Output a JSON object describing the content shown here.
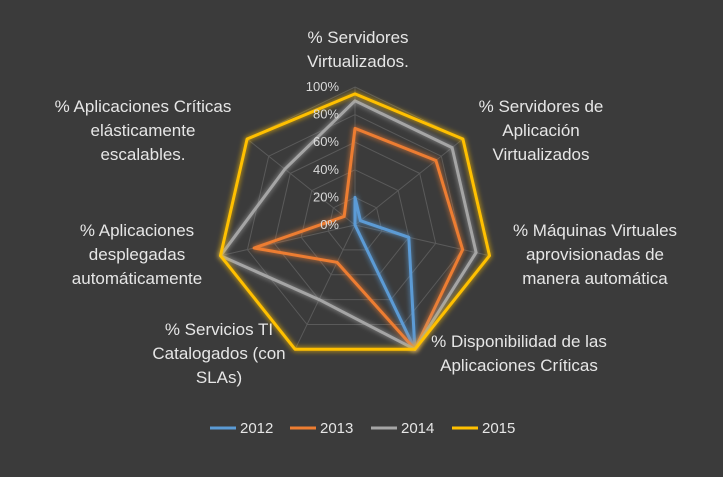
{
  "chart_data": {
    "type": "radar",
    "categories": [
      "% Servidores Virtualizados.",
      "% Servidores de Aplicación Virtualizados",
      "% Máquinas Virtuales aprovisionadas de manera automática",
      "% Disponibilidad de las Aplicaciones Críticas",
      "% Servicios TI Catalogados (con SLAs)",
      "% Aplicaciones desplegadas automáticamente",
      "% Aplicaciones Críticas elásticamente escalables."
    ],
    "category_lines": [
      [
        "% Servidores",
        "Virtualizados."
      ],
      [
        "% Servidores de",
        "Aplicación",
        "Virtualizados"
      ],
      [
        "% Máquinas Virtuales",
        "aprovisionadas de",
        "manera automática"
      ],
      [
        "% Disponibilidad de las",
        "Aplicaciones Críticas"
      ],
      [
        "% Servicios TI",
        "Catalogados (con",
        "SLAs)"
      ],
      [
        "% Aplicaciones",
        "desplegadas",
        "automáticamente"
      ],
      [
        "% Aplicaciones Críticas",
        "elásticamente",
        "escalables."
      ]
    ],
    "series": [
      {
        "name": "2012",
        "color": "#5b9bd5",
        "values": [
          0.2,
          0.05,
          0.4,
          1.0,
          0.0,
          0.0,
          0.0
        ]
      },
      {
        "name": "2013",
        "color": "#ed7d31",
        "values": [
          0.7,
          0.75,
          0.8,
          1.0,
          0.3,
          0.75,
          0.1
        ]
      },
      {
        "name": "2014",
        "color": "#a5a5a5",
        "values": [
          0.9,
          0.9,
          0.9,
          1.0,
          0.6,
          1.0,
          0.65
        ]
      },
      {
        "name": "2015",
        "color": "#ffc000",
        "values": [
          0.95,
          1.0,
          1.0,
          1.0,
          1.0,
          1.0,
          1.0
        ]
      }
    ],
    "ticks": [
      "0%",
      "20%",
      "40%",
      "60%",
      "80%",
      "100%"
    ],
    "tick_values": [
      0,
      0.2,
      0.4,
      0.6,
      0.8,
      1.0
    ],
    "range": [
      0,
      1
    ],
    "legend_position": "bottom"
  }
}
